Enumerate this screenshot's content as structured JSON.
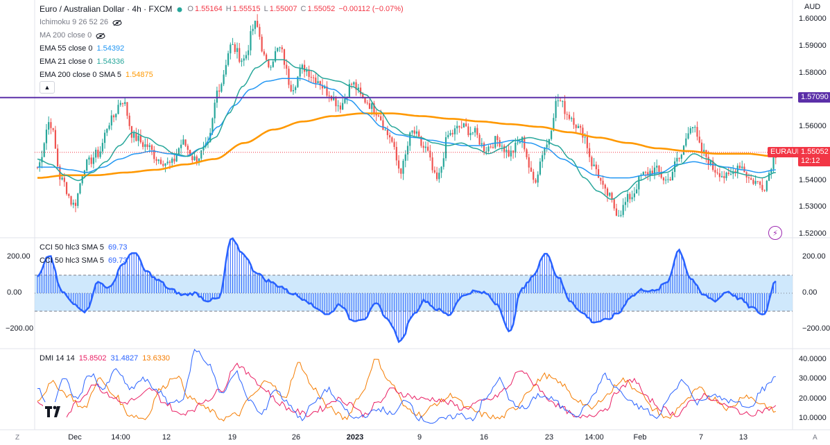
{
  "header": {
    "symbol_title": "Euro / Australian Dollar · 4h · FXCM",
    "dot_color": "#26a69a",
    "ohlc": {
      "open_label": "O",
      "open": "1.55164",
      "high_label": "H",
      "high": "1.55515",
      "low_label": "L",
      "low": "1.55007",
      "close_label": "C",
      "close": "1.55052",
      "change": "−0.00112 (−0.07%)"
    }
  },
  "indicators": [
    {
      "label": "Ichimoku 9 26 52 26",
      "value": "",
      "icon": "eye-off-icon"
    },
    {
      "label": "MA 200 close 0",
      "value": "",
      "icon": "eye-off-icon"
    },
    {
      "label": "EMA 55 close 0",
      "value": "1.54392",
      "color": "#2196f3"
    },
    {
      "label": "EMA 21 close 0",
      "value": "1.54336",
      "color": "#26a69a"
    },
    {
      "label": "EMA 200 close 0 SMA 5",
      "value": "1.54875",
      "color": "#ff9800"
    }
  ],
  "cci_legend": [
    {
      "label": "CCI 50 hlc3 SMA 5",
      "value": "69.73",
      "color": "#2962ff"
    },
    {
      "label": "CCI 50 hlc3 SMA 5",
      "value": "69.73",
      "color": "#2962ff"
    }
  ],
  "dmi_legend": {
    "label": "DMI 14 14",
    "values": [
      {
        "value": "15.8502",
        "color": "#e91e63"
      },
      {
        "value": "31.4827",
        "color": "#2962ff"
      },
      {
        "value": "13.6330",
        "color": "#f57c00"
      }
    ]
  },
  "price_axis": {
    "currency": "AUD",
    "ticks": [
      "1.60000",
      "1.59000",
      "1.58000",
      "1.57000",
      "1.56000",
      "1.55000",
      "1.54000",
      "1.53000",
      "1.52000"
    ],
    "horizontal_line": {
      "value": 1.5709,
      "label": "1.57090",
      "color": "#5b2fa8"
    },
    "last_price": {
      "value": 1.55052,
      "label": "1.55052",
      "countdown": "12:12",
      "symbol": "EURAUD",
      "color": "#f23645"
    }
  },
  "cci_axis": {
    "ticks": [
      "200.00",
      "0.00",
      "−200.00"
    ],
    "band": [
      100,
      -100
    ]
  },
  "dmi_axis": {
    "ticks": [
      "40.0000",
      "30.0000",
      "20.0000",
      "10.0000"
    ]
  },
  "x_axis": {
    "labels": [
      {
        "text": "Dec",
        "bold": false
      },
      {
        "text": "14:00",
        "bold": false
      },
      {
        "text": "12",
        "bold": false
      },
      {
        "text": "19",
        "bold": false
      },
      {
        "text": "26",
        "bold": false
      },
      {
        "text": "2023",
        "bold": true
      },
      {
        "text": "9",
        "bold": false
      },
      {
        "text": "16",
        "bold": false
      },
      {
        "text": "23",
        "bold": false
      },
      {
        "text": "14:00",
        "bold": false
      },
      {
        "text": "Feb",
        "bold": false
      },
      {
        "text": "7",
        "bold": false
      },
      {
        "text": "13",
        "bold": false
      }
    ],
    "corner_left": "Z",
    "corner_right": "A"
  },
  "chart_data": {
    "type": "candlestick",
    "title": "Euro / Australian Dollar · 4h · FXCM",
    "price_range": [
      1.52,
      1.6
    ],
    "close_anchors": [
      1.545,
      1.562,
      1.54,
      1.531,
      1.546,
      1.55,
      1.562,
      1.57,
      1.556,
      1.553,
      1.548,
      1.546,
      1.554,
      1.548,
      1.552,
      1.575,
      1.59,
      1.585,
      1.598,
      1.583,
      1.589,
      1.575,
      1.582,
      1.578,
      1.573,
      1.568,
      1.576,
      1.57,
      1.566,
      1.557,
      1.544,
      1.558,
      1.552,
      1.54,
      1.557,
      1.56,
      1.558,
      1.552,
      1.555,
      1.55,
      1.555,
      1.54,
      1.553,
      1.57,
      1.564,
      1.558,
      1.545,
      1.535,
      1.528,
      1.534,
      1.542,
      1.544,
      1.54,
      1.548,
      1.561,
      1.55,
      1.544,
      1.541,
      1.546,
      1.54,
      1.538,
      1.55
    ],
    "ema21_anchors": [
      1.548,
      1.546,
      1.542,
      1.54,
      1.543,
      1.547,
      1.553,
      1.558,
      1.556,
      1.553,
      1.55,
      1.549,
      1.552,
      1.556,
      1.565,
      1.575,
      1.582,
      1.585,
      1.585,
      1.582,
      1.581,
      1.578,
      1.577,
      1.575,
      1.572,
      1.566,
      1.56,
      1.557,
      1.556,
      1.554,
      1.553,
      1.554,
      1.552,
      1.55,
      1.552,
      1.555,
      1.556,
      1.555,
      1.553,
      1.548,
      1.541,
      1.536,
      1.533,
      1.536,
      1.54,
      1.542,
      1.543,
      1.546,
      1.55,
      1.548,
      1.545,
      1.543,
      1.542,
      1.541,
      1.543
    ],
    "ema55_anchors": [
      1.545,
      1.545,
      1.544,
      1.543,
      1.545,
      1.548,
      1.55,
      1.551,
      1.55,
      1.549,
      1.552,
      1.56,
      1.568,
      1.574,
      1.577,
      1.578,
      1.578,
      1.576,
      1.574,
      1.57,
      1.565,
      1.56,
      1.557,
      1.556,
      1.555,
      1.554,
      1.553,
      1.553,
      1.554,
      1.555,
      1.554,
      1.552,
      1.548,
      1.545,
      1.542,
      1.541,
      1.541,
      1.542,
      1.543,
      1.546,
      1.547,
      1.546,
      1.545,
      1.544,
      1.543,
      1.544
    ],
    "ema200_anchors": [
      1.541,
      1.542,
      1.542,
      1.543,
      1.544,
      1.546,
      1.548,
      1.554,
      1.559,
      1.562,
      1.564,
      1.565,
      1.565,
      1.564,
      1.563,
      1.562,
      1.561,
      1.56,
      1.558,
      1.556,
      1.554,
      1.552,
      1.551,
      1.55,
      1.55,
      1.549
    ],
    "cci": {
      "ylim": [
        -300,
        300
      ],
      "anchors": [
        90,
        210,
        10,
        -60,
        -100,
        60,
        30,
        160,
        230,
        120,
        70,
        20,
        -10,
        0,
        -40,
        -30,
        300,
        220,
        120,
        70,
        40,
        0,
        -30,
        -80,
        -120,
        -60,
        -150,
        -140,
        -60,
        -150,
        -270,
        -120,
        -40,
        -90,
        -120,
        -20,
        10,
        0,
        -60,
        -220,
        20,
        100,
        230,
        90,
        -40,
        -110,
        -160,
        -150,
        -110,
        -20,
        20,
        10,
        60,
        240,
        80,
        -10,
        -40,
        10,
        -30,
        -80,
        -120,
        69.73
      ]
    },
    "dmi": {
      "ylim": [
        5,
        45
      ],
      "plus_di_blue": [
        25,
        15,
        30,
        20,
        33,
        25,
        35,
        25,
        30,
        25,
        18,
        20,
        45,
        38,
        22,
        34,
        20,
        12,
        25,
        18,
        10,
        18,
        25,
        17,
        10,
        12,
        15,
        12,
        20,
        10,
        8,
        10,
        12,
        10,
        20,
        30,
        18,
        15,
        22,
        20,
        15,
        12,
        20,
        32,
        25,
        18,
        15,
        10,
        22,
        30,
        18,
        22,
        20,
        18,
        15,
        25,
        31.4827
      ],
      "minus_di_pink": [
        18,
        15,
        12,
        20,
        28,
        22,
        18,
        20,
        25,
        18,
        12,
        15,
        20,
        25,
        38,
        32,
        25,
        18,
        14,
        12,
        15,
        20,
        18,
        12,
        18,
        25,
        22,
        20,
        20,
        18,
        15,
        18,
        20,
        25,
        35,
        28,
        20,
        15,
        10,
        12,
        15,
        25,
        30,
        20,
        15,
        12,
        18,
        22,
        18,
        15,
        12,
        14,
        15.8502
      ],
      "adx_orange": [
        20,
        28,
        22,
        15,
        30,
        22,
        12,
        10,
        25,
        32,
        20,
        15,
        10,
        12,
        22,
        30,
        20,
        38,
        25,
        15,
        10,
        22,
        40,
        28,
        15,
        12,
        18,
        22,
        15,
        12,
        10,
        15,
        25,
        32,
        28,
        20,
        15,
        22,
        30,
        25,
        15,
        10,
        18,
        25,
        20,
        15,
        22,
        18,
        13.633
      ]
    }
  }
}
